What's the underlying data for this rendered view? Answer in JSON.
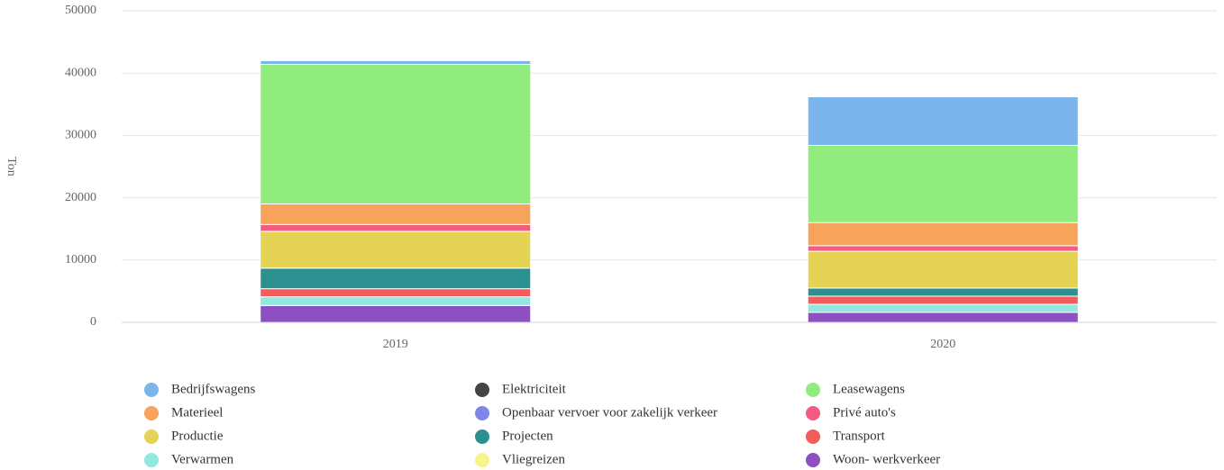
{
  "chart_data": {
    "type": "stacked_bar",
    "ylabel": "Ton",
    "categories": [
      "2019",
      "2020"
    ],
    "ylim": [
      0,
      50000
    ],
    "yticks": [
      0,
      10000,
      20000,
      30000,
      40000,
      50000
    ],
    "grid": true,
    "series": [
      {
        "name": "Bedrijfswagens",
        "color": "#7cb5ec",
        "values": [
          600,
          7800
        ]
      },
      {
        "name": "Elektriciteit",
        "color": "#434348",
        "values": [
          0,
          0
        ]
      },
      {
        "name": "Leasewagens",
        "color": "#90ed7d",
        "values": [
          22400,
          12400
        ]
      },
      {
        "name": "Materieel",
        "color": "#f7a35c",
        "values": [
          3300,
          3700
        ]
      },
      {
        "name": "Openbaar vervoer voor zakelijk verkeer",
        "color": "#8085e9",
        "values": [
          0,
          0
        ]
      },
      {
        "name": "Privé auto's",
        "color": "#f15c80",
        "values": [
          1100,
          900
        ]
      },
      {
        "name": "Productie",
        "color": "#e4d354",
        "values": [
          5900,
          5900
        ]
      },
      {
        "name": "Projecten",
        "color": "#2b908f",
        "values": [
          3300,
          1300
        ]
      },
      {
        "name": "Transport",
        "color": "#f45b5b",
        "values": [
          1300,
          1300
        ]
      },
      {
        "name": "Verwarmen",
        "color": "#91e8e1",
        "values": [
          1400,
          1300
        ]
      },
      {
        "name": "Vliegreizen",
        "color": "#f7f48b",
        "values": [
          0,
          0
        ]
      },
      {
        "name": "Woon- werkverkeer",
        "color": "#8e4fc2",
        "values": [
          2700,
          1600
        ]
      }
    ]
  }
}
